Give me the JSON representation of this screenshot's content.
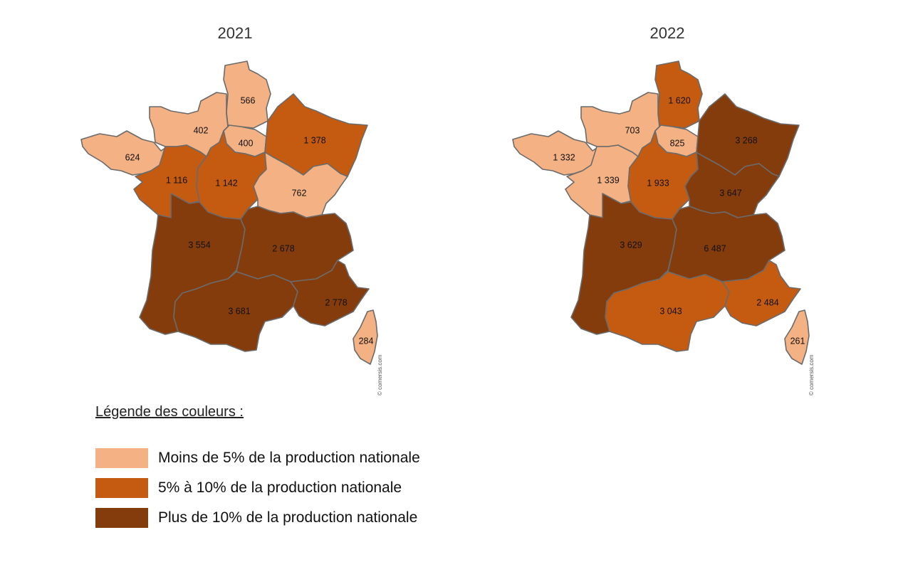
{
  "maps": [
    {
      "year": "2021",
      "watermark": "© comersis.com",
      "regions": [
        {
          "name": "Hauts-de-France",
          "value": "566",
          "category": "low"
        },
        {
          "name": "Normandie",
          "value": "402",
          "category": "low"
        },
        {
          "name": "Île-de-France",
          "value": "400",
          "category": "low"
        },
        {
          "name": "Grand Est",
          "value": "1 378",
          "category": "mid"
        },
        {
          "name": "Bretagne",
          "value": "624",
          "category": "low"
        },
        {
          "name": "Pays de la Loire",
          "value": "1 116",
          "category": "mid"
        },
        {
          "name": "Centre-Val de Loire",
          "value": "1 142",
          "category": "mid"
        },
        {
          "name": "Bourgogne-Franche-Comté",
          "value": "762",
          "category": "low"
        },
        {
          "name": "Nouvelle-Aquitaine",
          "value": "3 554",
          "category": "high"
        },
        {
          "name": "Auvergne-Rhône-Alpes",
          "value": "2 678",
          "category": "high"
        },
        {
          "name": "Occitanie",
          "value": "3 681",
          "category": "high"
        },
        {
          "name": "Provence-Alpes-Côte d'Azur",
          "value": "2 778",
          "category": "high"
        },
        {
          "name": "Corse",
          "value": "284",
          "category": "low"
        }
      ]
    },
    {
      "year": "2022",
      "watermark": "© comersis.com",
      "regions": [
        {
          "name": "Hauts-de-France",
          "value": "1 620",
          "category": "mid"
        },
        {
          "name": "Normandie",
          "value": "703",
          "category": "low"
        },
        {
          "name": "Île-de-France",
          "value": "825",
          "category": "low"
        },
        {
          "name": "Grand Est",
          "value": "3 268",
          "category": "high"
        },
        {
          "name": "Bretagne",
          "value": "1 332",
          "category": "low"
        },
        {
          "name": "Pays de la Loire",
          "value": "1 339",
          "category": "low"
        },
        {
          "name": "Centre-Val de Loire",
          "value": "1 933",
          "category": "mid"
        },
        {
          "name": "Bourgogne-Franche-Comté",
          "value": "3 647",
          "category": "high"
        },
        {
          "name": "Nouvelle-Aquitaine",
          "value": "3 629",
          "category": "high"
        },
        {
          "name": "Auvergne-Rhône-Alpes",
          "value": "6 487",
          "category": "high"
        },
        {
          "name": "Occitanie",
          "value": "3 043",
          "category": "mid"
        },
        {
          "name": "Provence-Alpes-Côte d'Azur",
          "value": "2 484",
          "category": "mid"
        },
        {
          "name": "Corse",
          "value": "261",
          "category": "low"
        }
      ]
    }
  ],
  "colors": {
    "low": "#f4b183",
    "mid": "#c55a11",
    "high": "#843c0c"
  },
  "legend": {
    "title": "Légende des couleurs :",
    "items": [
      {
        "category": "low",
        "label": "Moins de 5% de la production nationale"
      },
      {
        "category": "mid",
        "label": "5% à 10% de la production nationale"
      },
      {
        "category": "high",
        "label": "Plus de 10% de la production nationale"
      }
    ]
  }
}
